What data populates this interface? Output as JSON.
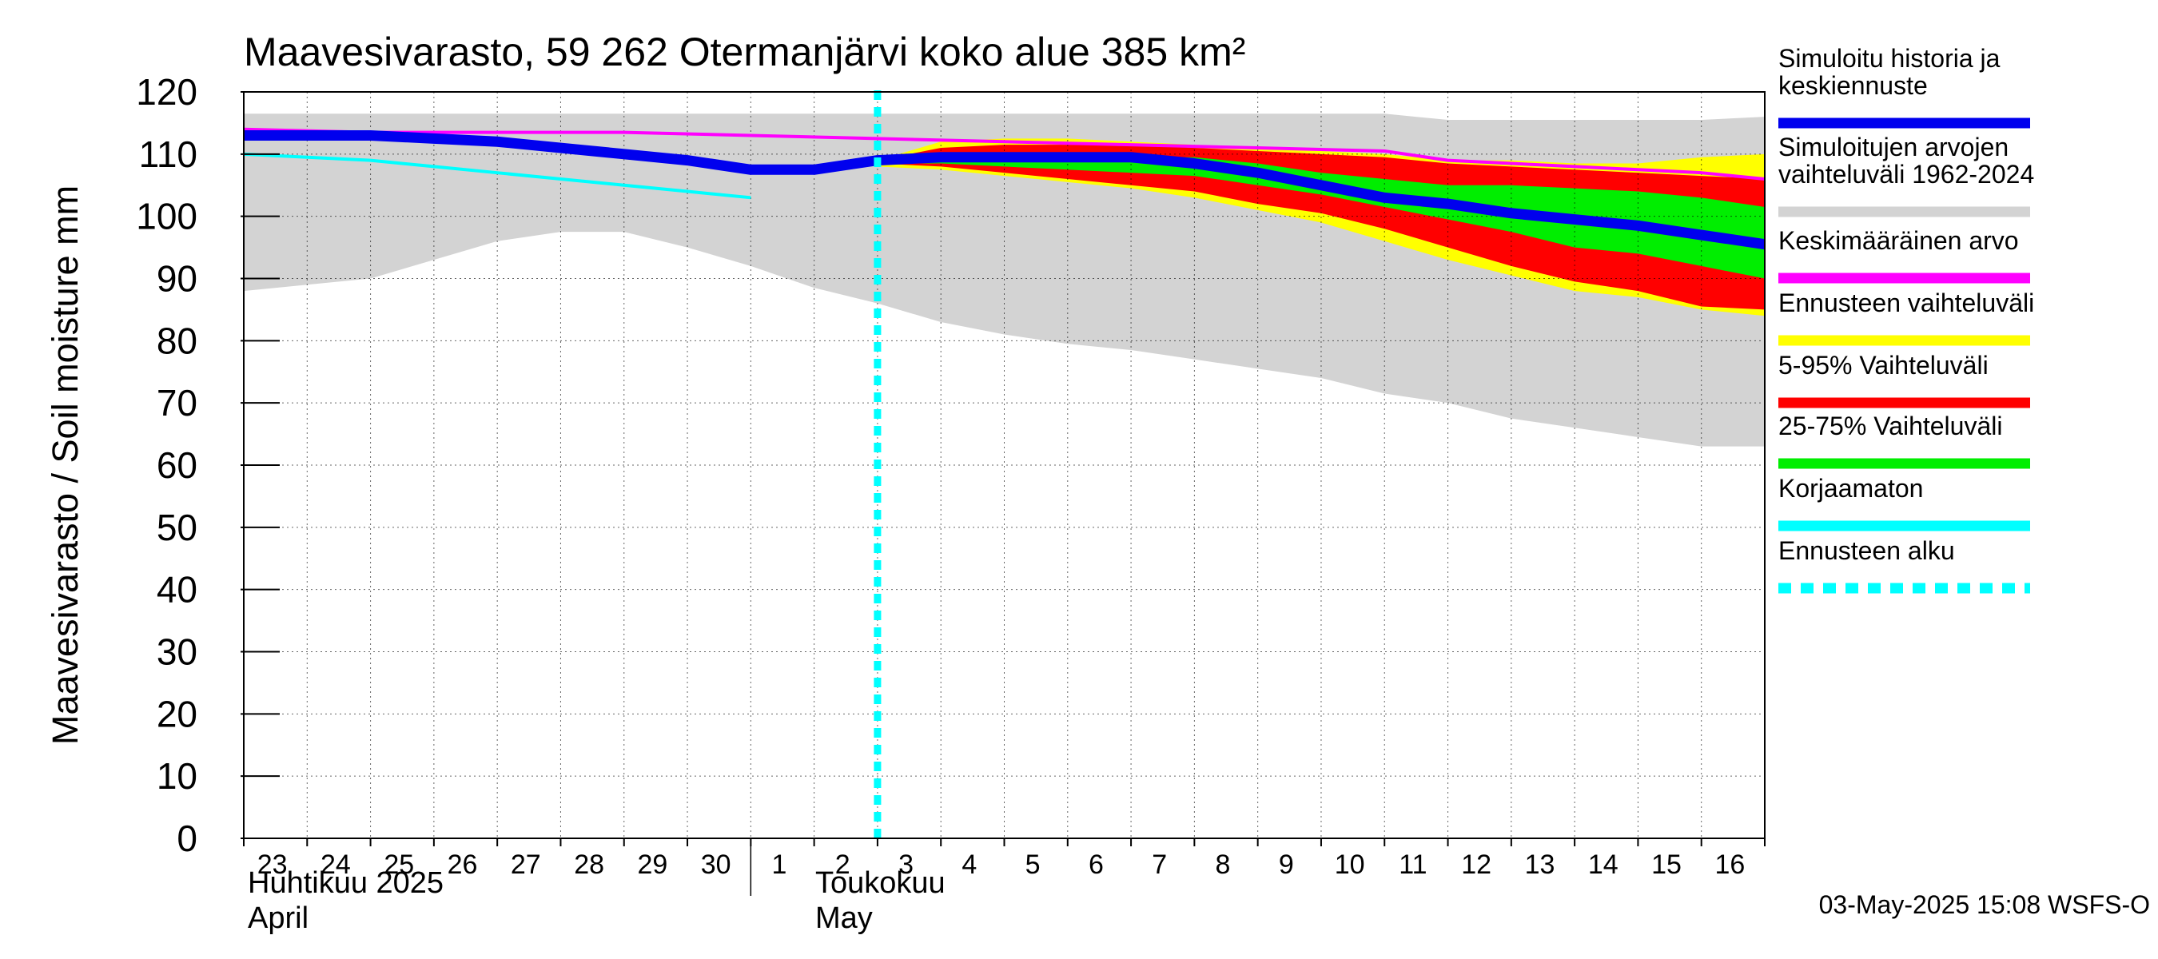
{
  "chart_data": {
    "type": "area",
    "title": "Maavesivarasto, 59 262 Otermanjärvi koko alue 385 km²",
    "ylabel": "Maavesivarasto / Soil moisture   mm",
    "ylim": [
      0,
      120
    ],
    "yticks": [
      0,
      10,
      20,
      30,
      40,
      50,
      60,
      70,
      80,
      90,
      100,
      110,
      120
    ],
    "xlim": [
      0,
      24
    ],
    "xticks": [
      {
        "x": 0,
        "label": "23"
      },
      {
        "x": 1,
        "label": "24"
      },
      {
        "x": 2,
        "label": "25"
      },
      {
        "x": 3,
        "label": "26"
      },
      {
        "x": 4,
        "label": "27"
      },
      {
        "x": 5,
        "label": "28"
      },
      {
        "x": 6,
        "label": "29"
      },
      {
        "x": 7,
        "label": "30"
      },
      {
        "x": 8,
        "label": "1"
      },
      {
        "x": 9,
        "label": "2"
      },
      {
        "x": 10,
        "label": "3"
      },
      {
        "x": 11,
        "label": "4"
      },
      {
        "x": 12,
        "label": "5"
      },
      {
        "x": 13,
        "label": "6"
      },
      {
        "x": 14,
        "label": "7"
      },
      {
        "x": 15,
        "label": "8"
      },
      {
        "x": 16,
        "label": "9"
      },
      {
        "x": 17,
        "label": "10"
      },
      {
        "x": 18,
        "label": "11"
      },
      {
        "x": 19,
        "label": "12"
      },
      {
        "x": 20,
        "label": "13"
      },
      {
        "x": 21,
        "label": "14"
      },
      {
        "x": 22,
        "label": "15"
      },
      {
        "x": 23,
        "label": "16"
      }
    ],
    "months": [
      {
        "x": 0,
        "line1": "Huhtikuu  2025",
        "line2": "April"
      },
      {
        "x": 8,
        "line1": "Toukokuu",
        "line2": "May"
      }
    ],
    "month_divider_x": 8,
    "forecast_start_x": 10,
    "series": [
      {
        "name": "Simuloitujen arvojen vaihteluväli 1962-2024",
        "kind": "band",
        "color": "#d3d3d3",
        "x": [
          0,
          1,
          2,
          3,
          4,
          5,
          6,
          7,
          8,
          9,
          10,
          11,
          12,
          13,
          14,
          15,
          16,
          17,
          18,
          19,
          20,
          21,
          22,
          23,
          24
        ],
        "upper": [
          116.5,
          116.5,
          116.5,
          116.5,
          116.5,
          116.5,
          116.5,
          116.5,
          116.5,
          116.5,
          116.5,
          116.5,
          116.5,
          116.5,
          116.5,
          116.5,
          116.5,
          116.5,
          116.5,
          115.5,
          115.5,
          115.5,
          115.5,
          115.5,
          116
        ],
        "lower": [
          88,
          89,
          90,
          93,
          96,
          97.5,
          97.5,
          95,
          92,
          88.5,
          86,
          83,
          81,
          79.5,
          78.5,
          77,
          75.5,
          74,
          71.5,
          70,
          67.5,
          66,
          64.5,
          63,
          63
        ]
      },
      {
        "name": "Ennusteen vaihteluväli",
        "kind": "band",
        "color": "#ffff00",
        "x": [
          10,
          11,
          12,
          13,
          14,
          15,
          16,
          17,
          18,
          19,
          20,
          21,
          22,
          23,
          24
        ],
        "upper": [
          109,
          112,
          112.5,
          112.5,
          112,
          111.5,
          111,
          110.5,
          110,
          109,
          109,
          108.5,
          108.5,
          109.5,
          110
        ],
        "lower": [
          108,
          107.5,
          106.5,
          105.5,
          104.5,
          103,
          101,
          99,
          96,
          93,
          90.5,
          88,
          87,
          85,
          84
        ]
      },
      {
        "name": "5-95% Vaihteluväli",
        "kind": "band",
        "color": "#ff0000",
        "x": [
          10,
          11,
          12,
          13,
          14,
          15,
          16,
          17,
          18,
          19,
          20,
          21,
          22,
          23,
          24
        ],
        "upper": [
          109,
          111,
          111.5,
          111.5,
          111.5,
          111,
          110.5,
          110,
          109.5,
          108.5,
          108,
          107.5,
          107,
          106.5,
          106
        ],
        "lower": [
          108.5,
          108,
          107,
          106,
          105,
          104,
          102,
          100.5,
          98,
          95,
          92,
          89.5,
          88,
          85.5,
          85
        ]
      },
      {
        "name": "25-75% Vaihteluväli",
        "kind": "band",
        "color": "#00ee00",
        "x": [
          10,
          11,
          12,
          13,
          14,
          15,
          16,
          17,
          18,
          19,
          20,
          21,
          22,
          23,
          24
        ],
        "upper": [
          109,
          109.5,
          109.5,
          109.5,
          109.5,
          109.5,
          108.5,
          107,
          106,
          105,
          105,
          104.5,
          104,
          103,
          101.5
        ],
        "lower": [
          108.5,
          108.5,
          108,
          107.5,
          107,
          106.5,
          105,
          103.5,
          101.5,
          99.5,
          97.5,
          95,
          94,
          92,
          90
        ]
      },
      {
        "name": "Keskimääräinen arvo",
        "kind": "line",
        "color": "#ff00ff",
        "width": 4,
        "x": [
          0,
          2,
          4,
          6,
          8,
          10,
          12,
          14,
          16,
          18,
          19,
          20,
          21,
          22,
          23,
          24
        ],
        "y": [
          114,
          113.5,
          113.5,
          113.5,
          113,
          112.5,
          112,
          111.5,
          111,
          110.5,
          109,
          108.5,
          108,
          107.5,
          107,
          106
        ]
      },
      {
        "name": "Korjaamaton",
        "kind": "line",
        "color": "#00ffff",
        "width": 4,
        "x": [
          0,
          1,
          2,
          3,
          4,
          5,
          6,
          7,
          8
        ],
        "y": [
          110,
          109.5,
          109,
          108,
          107,
          106,
          105,
          104,
          103
        ]
      },
      {
        "name": "Simuloitu historia ja keskiennuste",
        "kind": "line",
        "color": "#0000ee",
        "width": 13,
        "x": [
          0,
          1,
          2,
          3,
          4,
          5,
          6,
          7,
          8,
          9,
          10,
          11,
          12,
          13,
          14,
          15,
          16,
          17,
          18,
          19,
          20,
          21,
          22,
          23,
          24
        ],
        "y": [
          113,
          113,
          113,
          112.5,
          112,
          111,
          110,
          109,
          107.5,
          107.5,
          109,
          109.5,
          109.5,
          109.5,
          109.5,
          108.5,
          107,
          105,
          103,
          102,
          100.5,
          99.5,
          98.5,
          97,
          95.5
        ]
      }
    ],
    "legend": [
      {
        "label_lines": [
          "Simuloitu historia ja",
          "keskiennuste"
        ],
        "color": "#0000ee",
        "style": "solid"
      },
      {
        "label_lines": [
          "Simuloitujen arvojen",
          "vaihteluväli 1962-2024"
        ],
        "color": "#d3d3d3",
        "style": "solid"
      },
      {
        "label_lines": [
          "Keskimääräinen arvo"
        ],
        "color": "#ff00ff",
        "style": "solid"
      },
      {
        "label_lines": [
          "Ennusteen vaihteluväli"
        ],
        "color": "#ffff00",
        "style": "solid"
      },
      {
        "label_lines": [
          "5-95% Vaihteluväli"
        ],
        "color": "#ff0000",
        "style": "solid"
      },
      {
        "label_lines": [
          "25-75% Vaihteluväli"
        ],
        "color": "#00ee00",
        "style": "solid"
      },
      {
        "label_lines": [
          "Korjaamaton"
        ],
        "color": "#00ffff",
        "style": "solid"
      },
      {
        "label_lines": [
          "Ennusteen alku"
        ],
        "color": "#00ffff",
        "style": "dashed"
      }
    ],
    "legend_position": "right",
    "footer": "03-May-2025 15:08 WSFS-O"
  }
}
